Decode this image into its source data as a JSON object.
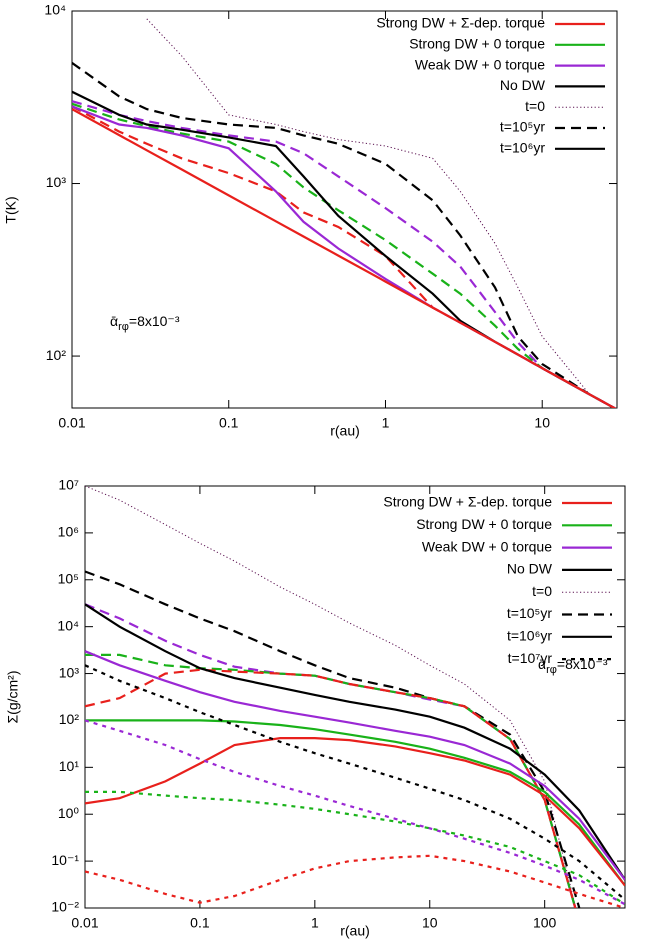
{
  "chart_data": [
    {
      "type": "line",
      "log_x": true,
      "log_y": true,
      "x_label": "r(au)",
      "y_label": "T(K)",
      "annotation": {
        "text": "ᾱ",
        "sub": "rφ",
        "rest": "=8x10⁻³"
      },
      "xlim": [
        0.01,
        30
      ],
      "ylim": [
        50,
        10000
      ],
      "xticks": [
        0.01,
        0.1,
        1,
        10
      ],
      "yticks": [
        {
          "value": 100,
          "label": "10²"
        },
        {
          "value": 1000,
          "label": "10³"
        },
        {
          "value": 10000,
          "label": "10⁴"
        }
      ],
      "legend": [
        {
          "name": "Strong DW + Σ-dep. torque",
          "color": "#e8201c"
        },
        {
          "name": "Strong DW + 0 torque",
          "color": "#19b219"
        },
        {
          "name": "Weak DW + 0 torque",
          "color": "#9a28d4"
        },
        {
          "name": "No DW",
          "color": "#000000"
        },
        {
          "name": "t=0",
          "color": "#5a1050",
          "dash": "dotted"
        },
        {
          "name": "t=10⁵yr",
          "color": "#000000",
          "dash": "dashed"
        },
        {
          "name": "t=10⁶yr",
          "color": "#000000",
          "dash": "solid"
        }
      ],
      "x": [
        0.01,
        0.02,
        0.03,
        0.05,
        0.1,
        0.2,
        0.3,
        0.5,
        1,
        2,
        3,
        5,
        7,
        10,
        20,
        30
      ],
      "series": [
        {
          "color": "#5a1050",
          "dash": "dotted",
          "values": [
            null,
            null,
            9000,
            5500,
            2500,
            2200,
            2000,
            1800,
            1650,
            1400,
            900,
            450,
            250,
            130,
            60,
            49
          ]
        },
        {
          "color": "#000000",
          "dash": "dashed",
          "values": [
            5000,
            3200,
            2700,
            2400,
            2200,
            2100,
            1900,
            1700,
            1300,
            800,
            500,
            250,
            130,
            90,
            60,
            49
          ]
        },
        {
          "color": "#9a28d4",
          "dash": "dashed",
          "values": [
            3000,
            2500,
            2300,
            2100,
            1900,
            1750,
            1500,
            1100,
            720,
            460,
            330,
            180,
            120,
            85,
            60,
            49
          ]
        },
        {
          "color": "#19b219",
          "dash": "dashed",
          "values": [
            2900,
            2350,
            2150,
            1950,
            1750,
            1300,
            950,
            700,
            470,
            300,
            230,
            150,
            110,
            85,
            60,
            49
          ]
        },
        {
          "color": "#e8201c",
          "dash": "dashed",
          "values": [
            2800,
            2000,
            1700,
            1400,
            1150,
            900,
            680,
            560,
            380,
            191,
            156,
            121,
            102,
            85,
            60,
            49
          ]
        },
        {
          "color": "#000000",
          "dash": "solid",
          "values": [
            3400,
            2500,
            2200,
            2050,
            1850,
            1650,
            1100,
            650,
            380,
            230,
            160,
            121,
            102,
            85,
            60,
            49
          ]
        },
        {
          "color": "#9a28d4",
          "dash": "solid",
          "values": [
            2800,
            2200,
            2100,
            1900,
            1600,
            900,
            600,
            420,
            280,
            191,
            156,
            121,
            102,
            85,
            60,
            49
          ]
        },
        {
          "color": "#e8201c",
          "dash": "solid",
          "values": [
            2700,
            1909,
            1559,
            1207,
            854,
            604,
            493,
            382,
            270,
            191,
            156,
            121,
            102,
            85,
            60,
            49
          ]
        }
      ]
    },
    {
      "type": "line",
      "log_x": true,
      "log_y": true,
      "x_label": "r(au)",
      "y_label": "Σ(g/cm²)",
      "annotation": {
        "text": "ᾱ",
        "sub": "rφ",
        "rest": "=8x10⁻³"
      },
      "xlim": [
        0.01,
        500
      ],
      "ylim": [
        0.01,
        10000000
      ],
      "xticks": [
        0.01,
        0.1,
        1,
        10,
        100
      ],
      "yticks": [
        {
          "value": 0.01,
          "label": "10⁻²"
        },
        {
          "value": 0.1,
          "label": "10⁻¹"
        },
        {
          "value": 1,
          "label": "10⁰"
        },
        {
          "value": 10,
          "label": "10¹"
        },
        {
          "value": 100,
          "label": "10²"
        },
        {
          "value": 1000,
          "label": "10³"
        },
        {
          "value": 10000,
          "label": "10⁴"
        },
        {
          "value": 100000,
          "label": "10⁵"
        },
        {
          "value": 1000000,
          "label": "10⁶"
        },
        {
          "value": 10000000,
          "label": "10⁷"
        }
      ],
      "legend": [
        {
          "name": "Strong DW + Σ-dep. torque",
          "color": "#e8201c"
        },
        {
          "name": "Strong DW + 0 torque",
          "color": "#19b219"
        },
        {
          "name": "Weak DW + 0 torque",
          "color": "#9a28d4"
        },
        {
          "name": "No DW",
          "color": "#000000"
        },
        {
          "name": "t=0",
          "color": "#5a1050",
          "dash": "dotted"
        },
        {
          "name": "t=10⁵yr",
          "color": "#000000",
          "dash": "dashed"
        },
        {
          "name": "t=10⁶yr",
          "color": "#000000",
          "dash": "solid"
        },
        {
          "name": "t=10⁷yr",
          "color": "#000000",
          "dash": "short"
        }
      ],
      "x": [
        0.01,
        0.02,
        0.05,
        0.1,
        0.2,
        0.5,
        1,
        2,
        5,
        10,
        20,
        50,
        100,
        200,
        500
      ],
      "series": [
        {
          "color": "#5a1050",
          "dash": "dotted",
          "values": [
            10000000,
            5000000,
            1500000,
            600000,
            250000,
            70000,
            30000,
            12000,
            4000,
            1500,
            600,
            100,
            5,
            0.005,
            null
          ]
        },
        {
          "color": "#000000",
          "dash": "dashed",
          "values": [
            150000,
            80000,
            30000,
            15000,
            8000,
            3000,
            1500,
            800,
            500,
            300,
            200,
            50,
            3,
            0.01,
            null
          ]
        },
        {
          "color": "#9a28d4",
          "dash": "dashed",
          "values": [
            30000,
            15000,
            5000,
            2500,
            1400,
            1000,
            900,
            600,
            400,
            280,
            200,
            40,
            2,
            0.005,
            null
          ]
        },
        {
          "color": "#19b219",
          "dash": "dashed",
          "values": [
            2500,
            2500,
            1500,
            1300,
            1200,
            1000,
            900,
            600,
            400,
            300,
            200,
            40,
            2,
            0.005,
            null
          ]
        },
        {
          "color": "#e8201c",
          "dash": "dashed",
          "values": [
            200,
            300,
            1000,
            1200,
            1100,
            1000,
            900,
            600,
            400,
            300,
            200,
            40,
            2,
            0.005,
            null
          ]
        },
        {
          "color": "#000000",
          "dash": "solid",
          "values": [
            30000,
            10000,
            3000,
            1300,
            800,
            500,
            350,
            250,
            170,
            120,
            70,
            25,
            7,
            1.2,
            0.04
          ]
        },
        {
          "color": "#9a28d4",
          "dash": "solid",
          "values": [
            3000,
            1500,
            700,
            400,
            250,
            160,
            120,
            90,
            60,
            45,
            30,
            12,
            4,
            0.8,
            0.04
          ]
        },
        {
          "color": "#19b219",
          "dash": "solid",
          "values": [
            100,
            100,
            100,
            100,
            95,
            80,
            65,
            50,
            35,
            25,
            16,
            8,
            3,
            0.6,
            0.03
          ]
        },
        {
          "color": "#e8201c",
          "dash": "solid",
          "values": [
            1.7,
            2.2,
            5,
            12,
            30,
            42,
            42,
            38,
            28,
            20,
            14,
            7,
            2.5,
            0.5,
            0.03
          ]
        },
        {
          "color": "#000000",
          "dash": "short",
          "values": [
            1500,
            700,
            300,
            150,
            80,
            35,
            20,
            12,
            6,
            3.5,
            2,
            0.8,
            0.3,
            0.1,
            0.015
          ]
        },
        {
          "color": "#9a28d4",
          "dash": "short",
          "values": [
            100,
            60,
            30,
            15,
            8,
            4,
            2.5,
            1.5,
            0.8,
            0.5,
            0.3,
            0.15,
            0.08,
            0.04,
            0.012
          ]
        },
        {
          "color": "#19b219",
          "dash": "short",
          "values": [
            3,
            3,
            2.5,
            2.2,
            2,
            1.6,
            1.3,
            1,
            0.7,
            0.5,
            0.35,
            0.2,
            0.1,
            0.05,
            0.012
          ]
        },
        {
          "color": "#e8201c",
          "dash": "short",
          "values": [
            0.06,
            0.04,
            0.02,
            0.013,
            0.018,
            0.04,
            0.07,
            0.1,
            0.12,
            0.13,
            0.1,
            0.06,
            0.035,
            0.02,
            0.01
          ]
        }
      ]
    }
  ]
}
